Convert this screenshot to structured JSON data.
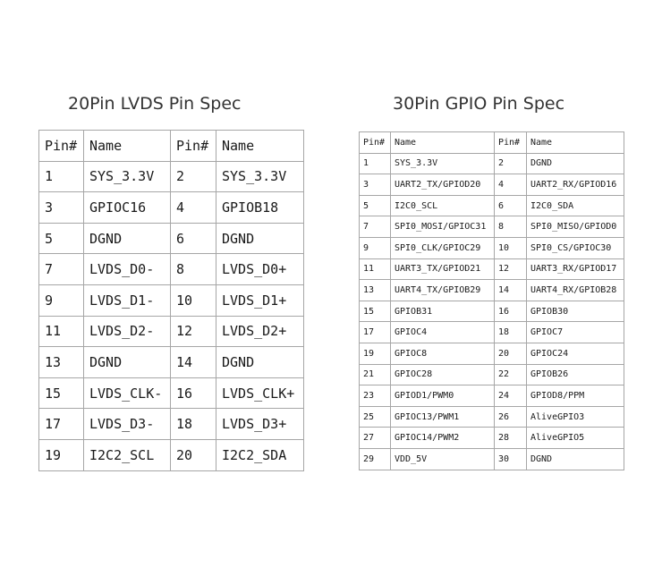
{
  "left": {
    "title": "20Pin LVDS Pin Spec",
    "headers": [
      "Pin#",
      "Name",
      "Pin#",
      "Name"
    ],
    "rows": [
      [
        "1",
        "SYS_3.3V",
        "2",
        "SYS_3.3V"
      ],
      [
        "3",
        "GPIOC16",
        "4",
        "GPIOB18"
      ],
      [
        "5",
        "DGND",
        "6",
        "DGND"
      ],
      [
        "7",
        "LVDS_D0-",
        "8",
        "LVDS_D0+"
      ],
      [
        "9",
        "LVDS_D1-",
        "10",
        "LVDS_D1+"
      ],
      [
        "11",
        "LVDS_D2-",
        "12",
        "LVDS_D2+"
      ],
      [
        "13",
        "DGND",
        "14",
        "DGND"
      ],
      [
        "15",
        "LVDS_CLK-",
        "16",
        "LVDS_CLK+"
      ],
      [
        "17",
        "LVDS_D3-",
        "18",
        "LVDS_D3+"
      ],
      [
        "19",
        "I2C2_SCL",
        "20",
        "I2C2_SDA"
      ]
    ]
  },
  "right": {
    "title": "30Pin GPIO Pin Spec",
    "headers": [
      "Pin#",
      "Name",
      "Pin#",
      "Name"
    ],
    "rows": [
      [
        "1",
        "SYS_3.3V",
        "2",
        "DGND"
      ],
      [
        "3",
        "UART2_TX/GPIOD20",
        "4",
        "UART2_RX/GPIOD16"
      ],
      [
        "5",
        "I2C0_SCL",
        "6",
        "I2C0_SDA"
      ],
      [
        "7",
        "SPI0_MOSI/GPIOC31",
        "8",
        "SPI0_MISO/GPIOD0"
      ],
      [
        "9",
        "SPI0_CLK/GPIOC29",
        "10",
        "SPI0_CS/GPIOC30"
      ],
      [
        "11",
        "UART3_TX/GPIOD21",
        "12",
        "UART3_RX/GPIOD17"
      ],
      [
        "13",
        "UART4_TX/GPIOB29",
        "14",
        "UART4_RX/GPIOB28"
      ],
      [
        "15",
        "GPIOB31",
        "16",
        "GPIOB30"
      ],
      [
        "17",
        "GPIOC4",
        "18",
        "GPIOC7"
      ],
      [
        "19",
        "GPIOC8",
        "20",
        "GPIOC24"
      ],
      [
        "21",
        "GPIOC28",
        "22",
        "GPIOB26"
      ],
      [
        "23",
        "GPIOD1/PWM0",
        "24",
        "GPIOD8/PPM"
      ],
      [
        "25",
        "GPIOC13/PWM1",
        "26",
        "AliveGPIO3"
      ],
      [
        "27",
        "GPIOC14/PWM2",
        "28",
        "AliveGPIO5"
      ],
      [
        "29",
        "VDD_5V",
        "30",
        "DGND"
      ]
    ]
  }
}
